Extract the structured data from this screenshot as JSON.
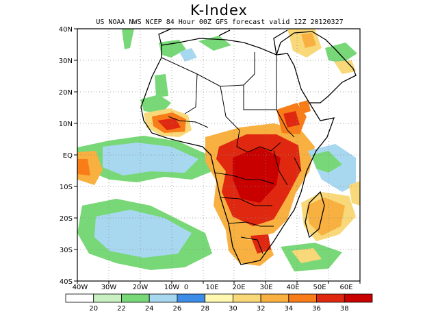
{
  "title": "K-Index",
  "subtitle": "US NOAA NWS NCEP 84 Hour 00Z GFS forecast valid 12Z 20120327",
  "lat_labels": [
    "40N",
    "30N",
    "20N",
    "10N",
    "EQ",
    "10S",
    "20S",
    "30S",
    "40S"
  ],
  "lon_labels": [
    "40W",
    "30W",
    "20W",
    "10W",
    "0",
    "10E",
    "20E",
    "30E",
    "40E",
    "50E",
    "60E"
  ],
  "colorbar": {
    "labels": [
      "20",
      "22",
      "24",
      "26",
      "28",
      "30",
      "32",
      "34",
      "36",
      "38"
    ],
    "colors": [
      "#ffffff",
      "#c8f0c0",
      "#78d878",
      "#a8d8f0",
      "#3c8ce8",
      "#fff8b0",
      "#f8d878",
      "#f8b040",
      "#f87c18",
      "#e02810",
      "#c80000"
    ]
  },
  "colors": {
    "land_outline": "#000000",
    "grid": "#888888",
    "coast_detail": "#000000"
  }
}
